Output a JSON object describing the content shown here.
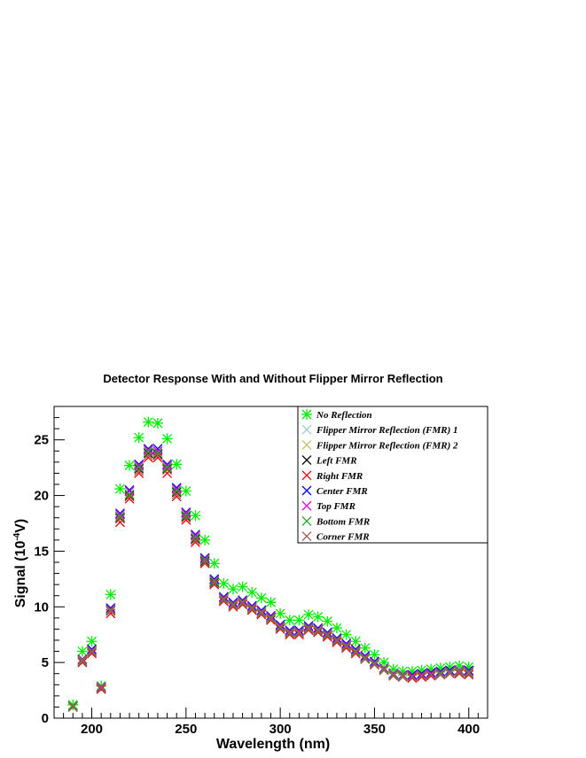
{
  "chart_data": {
    "type": "scatter",
    "title": "Detector Response With and Without Flipper Mirror Reflection",
    "xlabel": "Wavelength (nm)",
    "ylabel_prefix": "Signal (10",
    "ylabel_exp": "-4",
    "ylabel_suffix": "V)",
    "xlim": [
      180,
      410
    ],
    "ylim": [
      0,
      28
    ],
    "xticks": [
      200,
      250,
      300,
      350,
      400
    ],
    "yticks": [
      0,
      5,
      10,
      15,
      20,
      25
    ],
    "x": [
      190,
      195,
      200,
      205,
      210,
      215,
      220,
      225,
      230,
      235,
      240,
      245,
      250,
      255,
      260,
      265,
      270,
      275,
      280,
      285,
      290,
      295,
      300,
      305,
      310,
      315,
      320,
      325,
      330,
      335,
      340,
      345,
      350,
      355,
      360,
      365,
      370,
      375,
      380,
      385,
      390,
      395,
      400
    ],
    "series": [
      {
        "name": "No Reflection",
        "color": "#00ee00",
        "marker": "star",
        "values": [
          1.2,
          6.0,
          6.9,
          2.9,
          11.1,
          20.6,
          22.7,
          25.2,
          26.6,
          26.5,
          25.1,
          22.8,
          20.4,
          18.2,
          16.0,
          13.9,
          12.1,
          11.6,
          11.8,
          11.3,
          10.8,
          10.4,
          9.4,
          8.8,
          8.8,
          9.3,
          9.1,
          8.7,
          8.1,
          7.5,
          6.9,
          6.3,
          5.7,
          5.0,
          4.4,
          4.2,
          4.2,
          4.3,
          4.4,
          4.5,
          4.6,
          4.7,
          4.6
        ]
      },
      {
        "name": "Flipper Mirror Reflection (FMR) 1",
        "color": "#99cccc",
        "marker": "x",
        "values": [
          1.1,
          5.3,
          6.1,
          2.8,
          9.8,
          18.2,
          20.3,
          22.6,
          24.0,
          23.9,
          22.6,
          20.5,
          18.3,
          16.3,
          14.3,
          12.4,
          10.8,
          10.3,
          10.5,
          10.0,
          9.6,
          9.1,
          8.3,
          7.8,
          7.8,
          8.2,
          8.0,
          7.6,
          7.1,
          6.6,
          6.1,
          5.5,
          5.0,
          4.5,
          4.0,
          3.9,
          3.8,
          3.9,
          4.0,
          4.1,
          4.2,
          4.3,
          4.2
        ]
      },
      {
        "name": "Flipper Mirror Reflection (FMR) 2",
        "color": "#ccbb66",
        "marker": "x",
        "values": [
          1.1,
          5.2,
          6.0,
          2.8,
          9.7,
          18.0,
          20.1,
          22.4,
          23.8,
          23.8,
          22.5,
          20.3,
          18.1,
          16.1,
          14.1,
          12.3,
          10.7,
          10.2,
          10.4,
          9.9,
          9.5,
          9.0,
          8.2,
          7.7,
          7.7,
          8.1,
          7.9,
          7.5,
          7.0,
          6.5,
          6.0,
          5.4,
          4.9,
          4.4,
          3.9,
          3.8,
          3.7,
          3.8,
          3.9,
          4.0,
          4.1,
          4.2,
          4.1
        ]
      },
      {
        "name": "Left FMR",
        "color": "#000000",
        "marker": "x",
        "values": [
          1.1,
          5.2,
          6.0,
          2.7,
          9.7,
          18.0,
          20.0,
          22.4,
          23.8,
          23.7,
          22.4,
          20.3,
          18.1,
          16.1,
          14.1,
          12.2,
          10.7,
          10.2,
          10.4,
          9.9,
          9.4,
          9.0,
          8.2,
          7.7,
          7.7,
          8.1,
          7.9,
          7.5,
          7.0,
          6.5,
          6.0,
          5.4,
          4.9,
          4.4,
          3.9,
          3.8,
          3.7,
          3.8,
          3.9,
          4.0,
          4.1,
          4.2,
          4.1
        ]
      },
      {
        "name": "Right FMR",
        "color": "#ee0000",
        "marker": "x",
        "values": [
          1.0,
          5.0,
          5.8,
          2.6,
          9.4,
          17.6,
          19.7,
          22.0,
          23.4,
          23.4,
          22.0,
          19.9,
          17.8,
          15.8,
          13.9,
          12.0,
          10.5,
          10.0,
          10.2,
          9.7,
          9.3,
          8.8,
          8.0,
          7.5,
          7.5,
          7.9,
          7.7,
          7.3,
          6.8,
          6.3,
          5.8,
          5.3,
          4.8,
          4.3,
          3.8,
          3.7,
          3.6,
          3.7,
          3.8,
          3.9,
          4.0,
          4.0,
          3.9
        ]
      },
      {
        "name": "Center FMR",
        "color": "#0000ee",
        "marker": "x",
        "values": [
          1.1,
          5.3,
          6.2,
          2.8,
          9.9,
          18.4,
          20.5,
          22.8,
          24.2,
          24.2,
          22.8,
          20.7,
          18.5,
          16.5,
          14.4,
          12.5,
          10.9,
          10.4,
          10.6,
          10.1,
          9.7,
          9.2,
          8.4,
          7.9,
          7.9,
          8.3,
          8.1,
          7.7,
          7.2,
          6.7,
          6.2,
          5.6,
          5.1,
          4.5,
          4.0,
          3.9,
          3.9,
          4.0,
          4.1,
          4.2,
          4.3,
          4.3,
          4.3
        ]
      },
      {
        "name": "Top FMR",
        "color": "#dd00dd",
        "marker": "x",
        "values": [
          1.1,
          5.3,
          6.1,
          2.8,
          9.8,
          18.3,
          20.4,
          22.7,
          24.1,
          24.0,
          22.7,
          20.6,
          18.4,
          16.4,
          14.3,
          12.4,
          10.8,
          10.3,
          10.5,
          10.0,
          9.6,
          9.1,
          8.3,
          7.8,
          7.8,
          8.2,
          8.0,
          7.6,
          7.1,
          6.6,
          6.1,
          5.5,
          5.0,
          4.5,
          4.0,
          3.9,
          3.8,
          3.9,
          4.0,
          4.1,
          4.2,
          4.3,
          4.2
        ]
      },
      {
        "name": "Bottom FMR",
        "color": "#22aa22",
        "marker": "x",
        "values": [
          1.1,
          5.2,
          6.0,
          2.7,
          9.7,
          18.1,
          20.1,
          22.5,
          23.9,
          23.8,
          22.5,
          20.4,
          18.2,
          16.2,
          14.2,
          12.3,
          10.7,
          10.2,
          10.4,
          9.9,
          9.5,
          9.0,
          8.2,
          7.7,
          7.7,
          8.1,
          7.9,
          7.5,
          7.0,
          6.5,
          6.0,
          5.4,
          4.9,
          4.4,
          3.9,
          3.8,
          3.7,
          3.8,
          3.9,
          4.0,
          4.1,
          4.2,
          4.1
        ]
      },
      {
        "name": "Corner FMR",
        "color": "#aa5555",
        "marker": "x",
        "values": [
          1.0,
          5.1,
          5.9,
          2.7,
          9.6,
          17.9,
          19.9,
          22.2,
          23.6,
          23.6,
          22.3,
          20.1,
          18.0,
          16.0,
          14.0,
          12.1,
          10.6,
          10.1,
          10.3,
          9.8,
          9.4,
          8.9,
          8.1,
          7.6,
          7.6,
          8.0,
          7.8,
          7.4,
          6.9,
          6.4,
          5.9,
          5.3,
          4.8,
          4.3,
          3.8,
          3.7,
          3.7,
          3.8,
          3.9,
          3.9,
          4.0,
          4.1,
          4.0
        ]
      }
    ],
    "legend_position": "top-right",
    "grid": false
  }
}
